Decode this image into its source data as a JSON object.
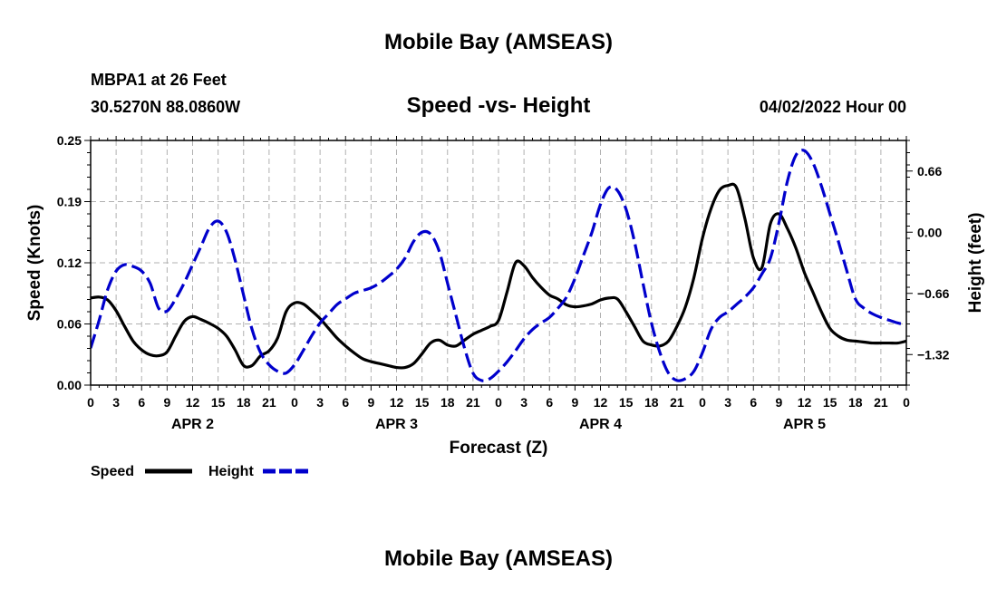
{
  "header": {
    "title": "Mobile Bay (AMSEAS)",
    "station": "MBPA1 at 26 Feet",
    "coords": "30.5270N  88.0860W",
    "subtitle": "Speed -vs- Height",
    "datetime": "04/02/2022 Hour 00",
    "footer_title": "Mobile Bay (AMSEAS)"
  },
  "chart_data": {
    "type": "line",
    "title": "Speed -vs- Height",
    "xlabel": "Forecast (Z)",
    "ylabel": "Speed (Knots)",
    "y2label": "Height (feet)",
    "x_tick_labels": [
      "0",
      "3",
      "6",
      "9",
      "12",
      "15",
      "18",
      "21",
      "0",
      "3",
      "6",
      "9",
      "12",
      "15",
      "18",
      "21",
      "0",
      "3",
      "6",
      "9",
      "12",
      "15",
      "18",
      "21",
      "0",
      "3",
      "6",
      "9",
      "12",
      "15",
      "18",
      "21",
      "0"
    ],
    "day_labels": [
      "APR 2",
      "APR 3",
      "APR 4",
      "APR 5"
    ],
    "xlim": [
      0,
      96
    ],
    "ylim": [
      0.0,
      0.25
    ],
    "y_ticks": [
      "0.00",
      "0.06",
      "0.12",
      "0.19",
      "0.25"
    ],
    "y2lim": [
      -1.65,
      0.99
    ],
    "y2_ticks": [
      "0.66",
      "0.00",
      "−0.66",
      "−1.32"
    ],
    "grid": true,
    "legend_placement": "bottom-left",
    "series": [
      {
        "name": "Speed",
        "axis": "left",
        "color": "#000000",
        "dash": "solid",
        "points": [
          [
            0,
            0.089
          ],
          [
            1,
            0.09
          ],
          [
            2,
            0.087
          ],
          [
            3,
            0.076
          ],
          [
            4,
            0.06
          ],
          [
            5,
            0.045
          ],
          [
            6,
            0.036
          ],
          [
            7,
            0.031
          ],
          [
            8,
            0.03
          ],
          [
            9,
            0.034
          ],
          [
            10,
            0.05
          ],
          [
            11,
            0.065
          ],
          [
            12,
            0.07
          ],
          [
            13,
            0.067
          ],
          [
            14,
            0.063
          ],
          [
            15,
            0.058
          ],
          [
            16,
            0.05
          ],
          [
            17,
            0.036
          ],
          [
            18,
            0.02
          ],
          [
            19,
            0.02
          ],
          [
            20,
            0.03
          ],
          [
            21,
            0.035
          ],
          [
            22,
            0.048
          ],
          [
            23,
            0.075
          ],
          [
            24,
            0.084
          ],
          [
            25,
            0.083
          ],
          [
            26,
            0.076
          ],
          [
            27,
            0.068
          ],
          [
            28,
            0.058
          ],
          [
            29,
            0.048
          ],
          [
            30,
            0.04
          ],
          [
            31,
            0.033
          ],
          [
            32,
            0.027
          ],
          [
            33,
            0.024
          ],
          [
            34,
            0.022
          ],
          [
            35,
            0.02
          ],
          [
            36,
            0.018
          ],
          [
            37,
            0.018
          ],
          [
            38,
            0.022
          ],
          [
            39,
            0.032
          ],
          [
            40,
            0.043
          ],
          [
            41,
            0.046
          ],
          [
            42,
            0.041
          ],
          [
            43,
            0.04
          ],
          [
            44,
            0.046
          ],
          [
            45,
            0.052
          ],
          [
            46,
            0.056
          ],
          [
            47,
            0.06
          ],
          [
            48,
            0.066
          ],
          [
            49,
            0.095
          ],
          [
            50,
            0.125
          ],
          [
            51,
            0.122
          ],
          [
            52,
            0.11
          ],
          [
            53,
            0.1
          ],
          [
            54,
            0.092
          ],
          [
            55,
            0.088
          ],
          [
            56,
            0.082
          ],
          [
            57,
            0.08
          ],
          [
            58,
            0.081
          ],
          [
            59,
            0.083
          ],
          [
            60,
            0.087
          ],
          [
            61,
            0.089
          ],
          [
            62,
            0.088
          ],
          [
            63,
            0.075
          ],
          [
            64,
            0.06
          ],
          [
            65,
            0.045
          ],
          [
            66,
            0.041
          ],
          [
            67,
            0.04
          ],
          [
            68,
            0.045
          ],
          [
            69,
            0.06
          ],
          [
            70,
            0.08
          ],
          [
            71,
            0.11
          ],
          [
            72,
            0.15
          ],
          [
            73,
            0.18
          ],
          [
            74,
            0.199
          ],
          [
            75,
            0.204
          ],
          [
            76,
            0.202
          ],
          [
            77,
            0.17
          ],
          [
            78,
            0.13
          ],
          [
            79,
            0.12
          ],
          [
            80,
            0.165
          ],
          [
            81,
            0.175
          ],
          [
            82,
            0.16
          ],
          [
            83,
            0.14
          ],
          [
            84,
            0.115
          ],
          [
            85,
            0.095
          ],
          [
            86,
            0.075
          ],
          [
            87,
            0.058
          ],
          [
            88,
            0.05
          ],
          [
            89,
            0.046
          ],
          [
            90,
            0.045
          ],
          [
            91,
            0.044
          ],
          [
            92,
            0.043
          ],
          [
            93,
            0.043
          ],
          [
            94,
            0.043
          ],
          [
            95,
            0.043
          ],
          [
            96,
            0.045
          ]
        ]
      },
      {
        "name": "Height",
        "axis": "right",
        "color": "#0000cc",
        "dash": "dashed",
        "points": [
          [
            0,
            -1.25
          ],
          [
            1,
            -0.95
          ],
          [
            2,
            -0.62
          ],
          [
            3,
            -0.42
          ],
          [
            4,
            -0.35
          ],
          [
            5,
            -0.37
          ],
          [
            6,
            -0.42
          ],
          [
            7,
            -0.55
          ],
          [
            8,
            -0.82
          ],
          [
            9,
            -0.85
          ],
          [
            10,
            -0.72
          ],
          [
            11,
            -0.55
          ],
          [
            12,
            -0.35
          ],
          [
            13,
            -0.15
          ],
          [
            14,
            0.05
          ],
          [
            15,
            0.12
          ],
          [
            16,
            0.0
          ],
          [
            17,
            -0.3
          ],
          [
            18,
            -0.68
          ],
          [
            19,
            -1.05
          ],
          [
            20,
            -1.3
          ],
          [
            21,
            -1.43
          ],
          [
            22,
            -1.5
          ],
          [
            23,
            -1.52
          ],
          [
            24,
            -1.43
          ],
          [
            25,
            -1.28
          ],
          [
            26,
            -1.12
          ],
          [
            27,
            -0.98
          ],
          [
            28,
            -0.88
          ],
          [
            29,
            -0.78
          ],
          [
            30,
            -0.72
          ],
          [
            31,
            -0.66
          ],
          [
            32,
            -0.63
          ],
          [
            33,
            -0.6
          ],
          [
            34,
            -0.55
          ],
          [
            35,
            -0.48
          ],
          [
            36,
            -0.4
          ],
          [
            37,
            -0.28
          ],
          [
            38,
            -0.1
          ],
          [
            39,
            0.0
          ],
          [
            40,
            -0.02
          ],
          [
            41,
            -0.2
          ],
          [
            42,
            -0.55
          ],
          [
            43,
            -0.9
          ],
          [
            44,
            -1.25
          ],
          [
            45,
            -1.52
          ],
          [
            46,
            -1.6
          ],
          [
            47,
            -1.58
          ],
          [
            48,
            -1.5
          ],
          [
            49,
            -1.4
          ],
          [
            50,
            -1.28
          ],
          [
            51,
            -1.15
          ],
          [
            52,
            -1.05
          ],
          [
            53,
            -0.98
          ],
          [
            54,
            -0.92
          ],
          [
            55,
            -0.82
          ],
          [
            56,
            -0.7
          ],
          [
            57,
            -0.5
          ],
          [
            58,
            -0.25
          ],
          [
            59,
            0.0
          ],
          [
            60,
            0.3
          ],
          [
            61,
            0.48
          ],
          [
            62,
            0.45
          ],
          [
            63,
            0.25
          ],
          [
            64,
            -0.1
          ],
          [
            65,
            -0.55
          ],
          [
            66,
            -0.98
          ],
          [
            67,
            -1.3
          ],
          [
            68,
            -1.52
          ],
          [
            69,
            -1.6
          ],
          [
            70,
            -1.58
          ],
          [
            71,
            -1.5
          ],
          [
            72,
            -1.3
          ],
          [
            73,
            -1.05
          ],
          [
            74,
            -0.92
          ],
          [
            75,
            -0.86
          ],
          [
            76,
            -0.78
          ],
          [
            77,
            -0.7
          ],
          [
            78,
            -0.6
          ],
          [
            79,
            -0.45
          ],
          [
            80,
            -0.28
          ],
          [
            81,
            0.1
          ],
          [
            82,
            0.55
          ],
          [
            83,
            0.83
          ],
          [
            84,
            0.88
          ],
          [
            85,
            0.75
          ],
          [
            86,
            0.5
          ],
          [
            87,
            0.2
          ],
          [
            88,
            -0.1
          ],
          [
            89,
            -0.42
          ],
          [
            90,
            -0.72
          ],
          [
            91,
            -0.82
          ],
          [
            92,
            -0.88
          ],
          [
            93,
            -0.92
          ],
          [
            94,
            -0.95
          ],
          [
            95,
            -0.98
          ],
          [
            96,
            -1.0
          ]
        ]
      }
    ]
  }
}
